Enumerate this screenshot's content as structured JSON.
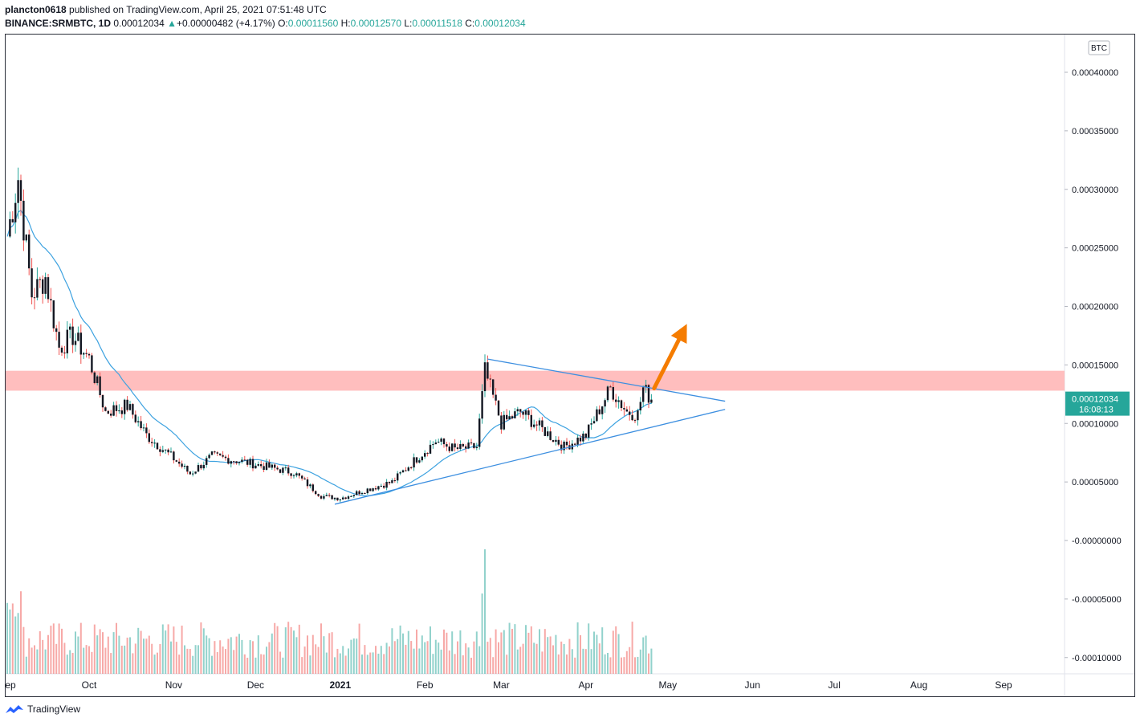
{
  "header": {
    "author": "plancton0618",
    "published_text": "published on TradingView.com, April 25, 2021 07:51:48 UTC",
    "symbol": "BINANCE:SRMBTC, 1D",
    "last": "0.00012034",
    "change": "+0.00000482 (+4.17%)",
    "open_label": "O:",
    "open": "0.00011560",
    "high_label": "H:",
    "high": "0.00012570",
    "low_label": "L:",
    "low": "0.00011518",
    "close_label": "C:",
    "close": "0.00012034"
  },
  "footer": {
    "brand": "TradingView"
  },
  "colors": {
    "up": "#26a69a",
    "down": "#ef5350",
    "candle_body": "#131722",
    "ma_line": "#3da2e0",
    "trendline": "#3d8fe0",
    "zone": "#ffb3b3",
    "arrow": "#f57c00",
    "price_badge": "#26a69a"
  },
  "chart_data": {
    "type": "candlestick",
    "currency_badge": "BTC",
    "price_badge": "0.00012034",
    "countdown": "16:08:13",
    "y_ticks": [
      "0.00040000",
      "0.00035000",
      "0.00030000",
      "0.00025000",
      "0.00020000",
      "0.00015000",
      "0.00010000",
      "0.00005000",
      "-0.00000000",
      "-0.00005000",
      "-0.00010000"
    ],
    "y_tick_values": [
      0.0004,
      0.00035,
      0.0003,
      0.00025,
      0.0002,
      0.00015,
      0.0001,
      5e-05,
      0,
      -5e-05,
      -0.0001
    ],
    "x_ticks": [
      {
        "label": "Sep",
        "date": "2020-09-01",
        "bold": false
      },
      {
        "label": "Oct",
        "date": "2020-10-01",
        "bold": false
      },
      {
        "label": "Nov",
        "date": "2020-11-01",
        "bold": false
      },
      {
        "label": "Dec",
        "date": "2020-12-01",
        "bold": false
      },
      {
        "label": "2021",
        "date": "2021-01-01",
        "bold": true
      },
      {
        "label": "Feb",
        "date": "2021-02-01",
        "bold": false
      },
      {
        "label": "Mar",
        "date": "2021-03-01",
        "bold": false
      },
      {
        "label": "Apr",
        "date": "2021-04-01",
        "bold": false
      },
      {
        "label": "May",
        "date": "2021-05-01",
        "bold": false
      },
      {
        "label": "Jun",
        "date": "2021-06-01",
        "bold": false
      },
      {
        "label": "Jul",
        "date": "2021-07-01",
        "bold": false
      },
      {
        "label": "Aug",
        "date": "2021-08-01",
        "bold": false
      },
      {
        "label": "Sep",
        "date": "2021-09-01",
        "bold": false
      }
    ],
    "key_closes": [
      {
        "date": "2020-09-01",
        "close": 0.00026
      },
      {
        "date": "2020-09-05",
        "close": 0.00031
      },
      {
        "date": "2020-09-10",
        "close": 0.00021
      },
      {
        "date": "2020-09-15",
        "close": 0.000225
      },
      {
        "date": "2020-09-20",
        "close": 0.000165
      },
      {
        "date": "2020-09-25",
        "close": 0.000175
      },
      {
        "date": "2020-10-01",
        "close": 0.000155
      },
      {
        "date": "2020-10-07",
        "close": 0.00011
      },
      {
        "date": "2020-10-15",
        "close": 0.000115
      },
      {
        "date": "2020-10-22",
        "close": 9e-05
      },
      {
        "date": "2020-11-01",
        "close": 7e-05
      },
      {
        "date": "2020-11-07",
        "close": 5.7e-05
      },
      {
        "date": "2020-11-15",
        "close": 7.2e-05
      },
      {
        "date": "2020-11-25",
        "close": 6.8e-05
      },
      {
        "date": "2020-12-05",
        "close": 6.3e-05
      },
      {
        "date": "2020-12-15",
        "close": 5.8e-05
      },
      {
        "date": "2020-12-25",
        "close": 3.8e-05
      },
      {
        "date": "2021-01-01",
        "close": 3.6e-05
      },
      {
        "date": "2021-01-10",
        "close": 4.3e-05
      },
      {
        "date": "2021-01-20",
        "close": 5e-05
      },
      {
        "date": "2021-01-28",
        "close": 6.8e-05
      },
      {
        "date": "2021-02-05",
        "close": 8.5e-05
      },
      {
        "date": "2021-02-12",
        "close": 7.8e-05
      },
      {
        "date": "2021-02-20",
        "close": 8e-05
      },
      {
        "date": "2021-02-23",
        "close": 0.000145
      },
      {
        "date": "2021-03-01",
        "close": 0.0001
      },
      {
        "date": "2021-03-08",
        "close": 0.00011
      },
      {
        "date": "2021-03-16",
        "close": 9.5e-05
      },
      {
        "date": "2021-03-24",
        "close": 8e-05
      },
      {
        "date": "2021-04-01",
        "close": 9e-05
      },
      {
        "date": "2021-04-10",
        "close": 0.00013
      },
      {
        "date": "2021-04-16",
        "close": 0.00011
      },
      {
        "date": "2021-04-20",
        "close": 0.000108
      },
      {
        "date": "2021-04-22",
        "close": 0.00013
      },
      {
        "date": "2021-04-25",
        "close": 0.00012034
      }
    ],
    "zone": {
      "low": 0.000128,
      "high": 0.000145
    },
    "trendlines": [
      {
        "name": "",
        "from": {
          "date": "2021-02-24",
          "price": 0.000155
        },
        "to": {
          "date": "2021-05-22",
          "price": 0.000119
        }
      },
      {
        "name": "",
        "from": {
          "date": "2020-12-30",
          "price": 3.1e-05
        },
        "to": {
          "date": "2021-05-22",
          "price": 0.000112
        }
      }
    ],
    "arrow": {
      "from": {
        "date": "2021-04-26",
        "price": 0.00013
      },
      "to": {
        "date": "2021-05-08",
        "price": 0.000185
      }
    },
    "grid": false
  }
}
